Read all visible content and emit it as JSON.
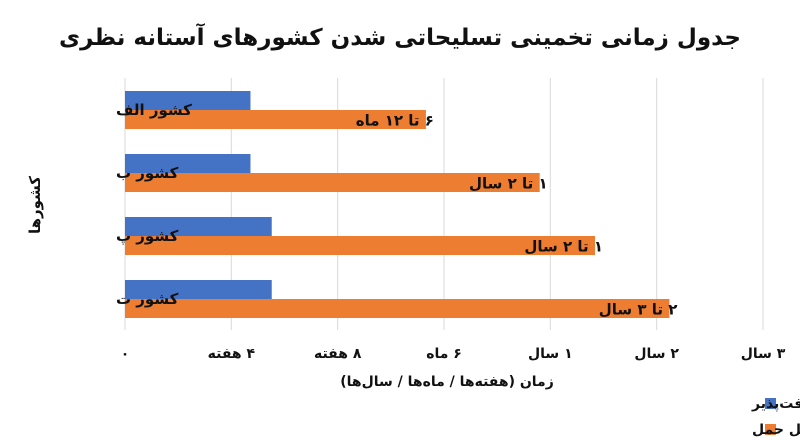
{
  "chart_data": {
    "type": "bar",
    "orientation": "horizontal",
    "title": "جدول زمانی تخمینی تسلیحاتی شدن کشورهای آستانه نظری",
    "ylabel": "کشورها",
    "xlabel": "زمان (هفته‌ها / ماه‌ها / سال‌ها)",
    "categories": [
      "کشور الف",
      "کشور ب",
      "کشور پ",
      "کشور ت"
    ],
    "x_ticks": [
      "۰",
      "۴ هفته",
      "۸ هفته",
      "۶ ماه",
      "۱ سال",
      "۲ سال",
      "۳ سال"
    ],
    "series": [
      {
        "name": "دستیابی به مواد شکافت‌پذیر",
        "color": "#4472c4",
        "values": [
          1.18,
          1.18,
          1.38,
          1.38
        ]
      },
      {
        "name": "شکاف تا کلاهک قابل حمل",
        "color": "#ed7d31",
        "values": [
          2.83,
          3.9,
          4.42,
          5.12
        ],
        "data_labels": [
          "۶ تا ۱۲ ماه",
          "۱ تا ۲ سال",
          "۱ تا ۲ سال",
          "۲ تا ۳ سال"
        ]
      }
    ],
    "xlim": [
      0,
      6
    ],
    "grid": true,
    "legend_position": "bottom-right"
  }
}
